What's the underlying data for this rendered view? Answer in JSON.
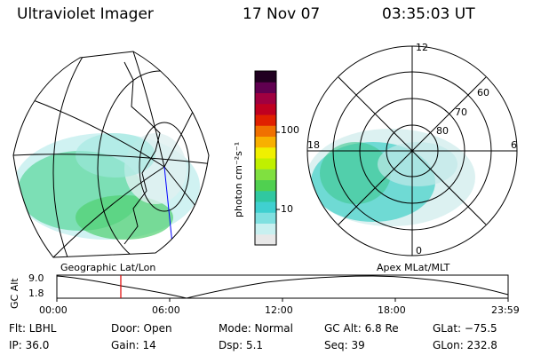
{
  "header": {
    "instrument": "Ultraviolet Imager",
    "date": "17 Nov 07",
    "time": "03:35:03 UT"
  },
  "left_panel": {
    "label": "Geographic Lat/Lon"
  },
  "right_panel": {
    "label": "Apex MLat/MLT",
    "mlt_labels": [
      "12",
      "18",
      "6",
      "0"
    ],
    "mlat_labels": [
      "60",
      "70",
      "80"
    ]
  },
  "colorbar": {
    "unit_label": "photon cm⁻²s⁻¹",
    "ticks": [
      "100",
      "10"
    ],
    "colors": [
      "#e8e8e8",
      "#c8f0f0",
      "#80e0e0",
      "#40d0d0",
      "#30c8a0",
      "#50d050",
      "#80e040",
      "#c0f000",
      "#f0f000",
      "#f8b000",
      "#f07000",
      "#e02000",
      "#c00020",
      "#a00040",
      "#600050",
      "#200020"
    ]
  },
  "altitude_plot": {
    "ylabel": "GC Alt",
    "yticks": [
      "9.0",
      "1.8"
    ],
    "xticks": [
      "00:00",
      "06:00",
      "12:00",
      "18:00",
      "23:59"
    ],
    "marker_time": "03:35",
    "marker_color": "#e00000"
  },
  "info": {
    "flt": "Flt: LBHL",
    "door": "Door: Open",
    "mode": "Mode: Normal",
    "gc_alt": "GC Alt: 6.8 Re",
    "glat": "GLat: −75.5",
    "ip": "IP: 36.0",
    "gain": "Gain: 14",
    "dsp": "Dsp:    5.1",
    "seq": "Seq: 39",
    "glon": "GLon: 232.8"
  }
}
